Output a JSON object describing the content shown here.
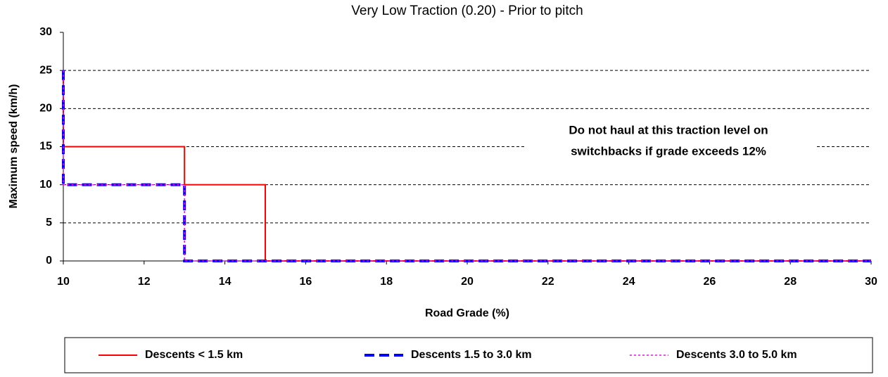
{
  "chart_data": {
    "type": "line",
    "title": "Very Low Traction (0.20) - Prior to pitch",
    "x_label": "Road Grade (%)",
    "y_label": "Maximum speed (km/h)",
    "annotation": [
      "Do not haul at this traction level on",
      "switchbacks if grade exceeds 12%"
    ],
    "xlim": [
      10,
      30
    ],
    "xticks": [
      10,
      12,
      14,
      16,
      18,
      20,
      22,
      24,
      26,
      28,
      30
    ],
    "ylim": [
      0,
      30
    ],
    "yticks": [
      0,
      5,
      10,
      15,
      20,
      25,
      30
    ],
    "grid": true,
    "legend": "bottom",
    "series": [
      {
        "name": "Descents < 1.5 km",
        "color": "#ff0000",
        "style": "solid",
        "x": [
          10,
          10,
          13,
          13,
          15,
          15,
          30
        ],
        "values": [
          25,
          15,
          15,
          10,
          10,
          0,
          0
        ]
      },
      {
        "name": "Descents 1.5 to 3.0 km",
        "color": "#0000ff",
        "style": "dashed",
        "x": [
          10,
          10,
          13,
          13,
          30
        ],
        "values": [
          25,
          10,
          10,
          0,
          0
        ]
      },
      {
        "name": "Descents 3.0 to 5.0 km",
        "color": "#ff00ff",
        "style": "dotted",
        "x": [
          10,
          10,
          13,
          13,
          30
        ],
        "values": [
          25,
          10,
          10,
          0,
          0
        ]
      }
    ]
  }
}
